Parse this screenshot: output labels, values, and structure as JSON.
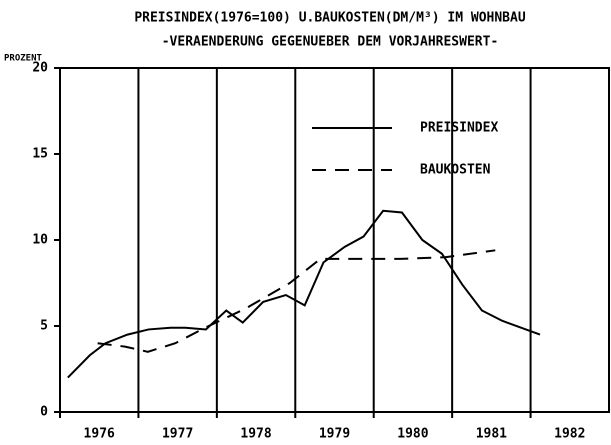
{
  "chart_data": {
    "type": "line",
    "title": "PREISINDEX(1976=100) U.BAUKOSTEN(DM/M³) IM WOHNBAU",
    "subtitle": "-VERAENDERUNG GEGENUEBER DEM VORJAHRESWERT-",
    "y_label": "PROZENT",
    "xlim": [
      1976,
      1983
    ],
    "xticks": [
      {
        "value": 1976,
        "label": "1976"
      },
      {
        "value": 1977,
        "label": "1977"
      },
      {
        "value": 1978,
        "label": "1978"
      },
      {
        "value": 1979,
        "label": "1979"
      },
      {
        "value": 1980,
        "label": "1980"
      },
      {
        "value": 1981,
        "label": "1981"
      },
      {
        "value": 1982,
        "label": "1982"
      }
    ],
    "ylim": [
      0,
      20
    ],
    "yticks": [
      0,
      5,
      10,
      15,
      20
    ],
    "grid": true,
    "legend": "upper right",
    "series": [
      {
        "name": "PREISINDEX",
        "color": "#000000",
        "dash": "solid",
        "x": [
          1976.1,
          1976.38,
          1976.58,
          1976.86,
          1977.13,
          1977.41,
          1977.6,
          1977.86,
          1978.12,
          1978.33,
          1978.59,
          1978.88,
          1979.12,
          1979.36,
          1979.63,
          1979.87,
          1980.12,
          1980.36,
          1980.62,
          1980.87,
          1981.13,
          1981.38,
          1981.64,
          1982.12
        ],
        "values": [
          2.0,
          3.3,
          4.0,
          4.5,
          4.8,
          4.9,
          4.9,
          4.8,
          5.9,
          5.2,
          6.4,
          6.8,
          6.2,
          8.7,
          9.6,
          10.2,
          11.7,
          11.6,
          10.0,
          9.2,
          7.4,
          5.9,
          5.3,
          4.5
        ]
      },
      {
        "name": "BAUKOSTEN",
        "color": "#000000",
        "dash": "dashed",
        "x": [
          1976.48,
          1976.83,
          1977.12,
          1977.47,
          1977.85,
          1978.36,
          1978.93,
          1979.32,
          1979.83,
          1980.34,
          1980.91,
          1981.55
        ],
        "values": [
          4.0,
          3.8,
          3.5,
          4.0,
          4.9,
          6.0,
          7.5,
          8.9,
          8.9,
          8.9,
          9.0,
          9.4
        ]
      }
    ]
  }
}
